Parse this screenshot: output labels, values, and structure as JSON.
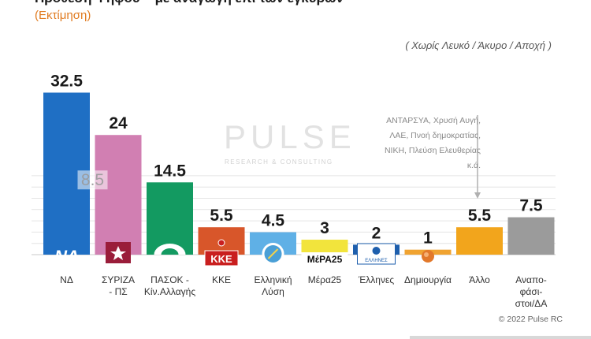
{
  "header": {
    "title": "Πρόθεση Ψήφου – με αναγωγή επί των εγκύρων",
    "subtitle": "(Εκτίμηση)",
    "note": "( Χωρίς Λευκό / Άκυρο / Αποχή )"
  },
  "chart_data": {
    "type": "bar",
    "categories": [
      "ΝΔ",
      "ΣΥΡΙΖΑ - ΠΣ",
      "ΠΑΣΟΚ - Κίν.Αλλαγής",
      "ΚΚΕ",
      "Ελληνική Λύση",
      "Μέρα25",
      "Έλληνες",
      "Δημιουργία",
      "Άλλο",
      "Αναποφάσιστοι/ΔΑ"
    ],
    "category_lines": [
      [
        "ΝΔ"
      ],
      [
        "ΣΥΡΙΖΑ",
        "- ΠΣ"
      ],
      [
        "ΠΑΣΟΚ -",
        "Κίν.Αλλαγής"
      ],
      [
        "ΚΚΕ"
      ],
      [
        "Ελληνική",
        "Λύση"
      ],
      [
        "Μέρα25"
      ],
      [
        "Έλληνες"
      ],
      [
        "Δημιουργία"
      ],
      [
        "Άλλο"
      ],
      [
        "Αναπο-",
        "φάσι-",
        "στοι/ΔΑ"
      ]
    ],
    "values": [
      32.5,
      24,
      14.5,
      5.5,
      4.5,
      3,
      2,
      1,
      5.5,
      7.5
    ],
    "value_labels": [
      "32.5",
      "24",
      "14.5",
      "5.5",
      "4.5",
      "3",
      "2",
      "1",
      "5.5",
      "7.5"
    ],
    "colors": [
      "#1f6fc4",
      "#d17fb2",
      "#139a61",
      "#d8562a",
      "#5fb0e6",
      "#f2e43c",
      "#1e5fad",
      "#f0a331",
      "#f2a51c",
      "#9b9b9b"
    ],
    "logos": [
      "ΝΔ",
      "ΣΥΡΙΖΑ",
      "ΠΑΣΟΚ",
      "ΚΚΕ",
      "ΕΛ",
      "ΜέΡΑ25",
      "ΕΛΛΗΝΕΣ",
      "",
      "",
      ""
    ],
    "inner_label": {
      "index": 1,
      "text": "8.5"
    },
    "ylim": [
      0,
      34
    ],
    "annotation": [
      "ΑΝΤΑΡΣΥΑ, Χρυσή Αυγή,",
      "ΛΑΕ, Πνοή δημοκρατίας,",
      "ΝΙΚΗ, Πλεύση Ελευθερίας κ.ά."
    ],
    "legend": "none"
  },
  "watermark": {
    "brand": "PULSE",
    "tagline": "RESEARCH & CONSULTING"
  },
  "footer": {
    "copyright": "© 2022 Pulse RC"
  }
}
